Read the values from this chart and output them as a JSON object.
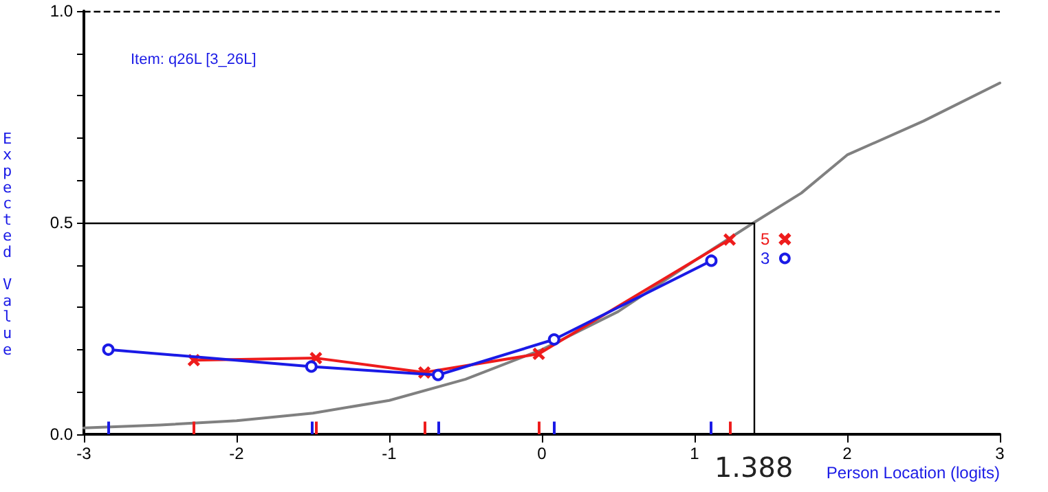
{
  "chart_data": {
    "type": "line",
    "annotations": [
      "Item: q26L [3_26L]"
    ],
    "xlabel": "Person Location (logits)",
    "ylabel": "Expected Value",
    "xlim": [
      -3,
      3
    ],
    "xticks": [
      -3,
      -2,
      -1,
      0,
      1,
      2,
      3
    ],
    "ylim": [
      0,
      1
    ],
    "yticks": [
      {
        "value": 0,
        "label": "0.0"
      },
      {
        "value": 0.1,
        "label": null
      },
      {
        "value": 0.2,
        "label": null
      },
      {
        "value": 0.3,
        "label": null
      },
      {
        "value": 0.4,
        "label": null
      },
      {
        "value": 0.5,
        "label": "0.5"
      },
      {
        "value": 0.6,
        "label": null
      },
      {
        "value": 0.7,
        "label": null
      },
      {
        "value": 0.8,
        "label": null
      },
      {
        "value": 0.9,
        "label": null
      },
      {
        "value": 1,
        "label": "1.0"
      }
    ],
    "grid": false,
    "legend": "right",
    "series": [
      {
        "color": "#808080",
        "marker": "none",
        "x": [
          -3,
          -2.5,
          -2,
          -1.5,
          -1,
          -0.5,
          0,
          0.5,
          1,
          1.388,
          1.7,
          2,
          2.5,
          3
        ],
        "values": [
          0.015,
          0.022,
          0.032,
          0.05,
          0.08,
          0.13,
          0.2,
          0.29,
          0.41,
          0.5,
          0.57,
          0.66,
          0.74,
          0.83
        ]
      },
      {
        "name": "5",
        "color": "#ee1c1c",
        "marker": "cross",
        "x": [
          -2.28,
          -1.48,
          -0.77,
          -0.02,
          1.23
        ],
        "values": [
          0.175,
          0.18,
          0.146,
          0.19,
          0.46
        ]
      },
      {
        "name": "3",
        "color": "#1a1ae6",
        "marker": "circle",
        "x": [
          -2.84,
          -1.51,
          -0.68,
          0.08,
          1.11
        ],
        "values": [
          0.2,
          0.16,
          0.14,
          0.224,
          0.41
        ]
      }
    ],
    "ref_lines": [
      {
        "axis": "y",
        "value": 1,
        "line_style": "dashed",
        "color": "#000000"
      },
      {
        "axis": "y",
        "value": 0.5,
        "color": "#000000"
      },
      {
        "axis": "x",
        "value": 1.388,
        "label": "1.388",
        "color": "#000000"
      }
    ]
  }
}
